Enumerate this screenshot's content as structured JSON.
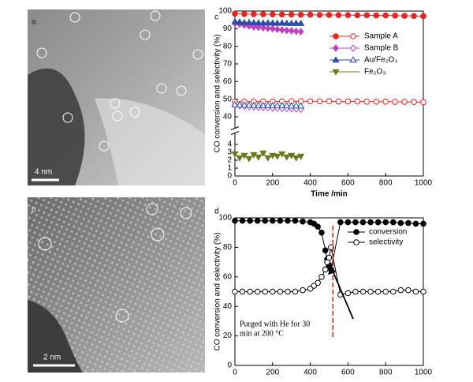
{
  "panels": [
    {
      "label": "a",
      "scale_bar": "4 nm"
    },
    {
      "label": "b",
      "scale_bar": "2 nm"
    }
  ],
  "chart_data": [
    {
      "type": "line",
      "panel_label": "c",
      "xlabel": "Time /min",
      "ylabel": "CO conversion and selectivity (%)",
      "xlim": [
        0,
        1000
      ],
      "xticks": [
        0,
        200,
        400,
        600,
        800,
        1000
      ],
      "ylim": [
        0,
        100
      ],
      "y_break": [
        4,
        40
      ],
      "yticks": [
        0,
        1,
        2,
        3,
        4,
        40,
        50,
        60,
        70,
        80,
        90,
        100
      ],
      "legend": "upper right",
      "series": [
        {
          "name": "Sample A",
          "color": "#e8251f",
          "marker": "circle",
          "x": [
            0,
            50,
            100,
            150,
            200,
            250,
            300,
            350,
            400,
            450,
            500,
            550,
            600,
            650,
            700,
            750,
            800,
            850,
            900,
            950,
            1000
          ],
          "conversion": [
            98.5,
            98.3,
            98.2,
            98.2,
            98.1,
            98,
            98,
            97.9,
            97.9,
            97.8,
            97.8,
            97.7,
            97.7,
            97.6,
            97.6,
            97.5,
            97.5,
            97.4,
            97.3,
            97.2,
            97.1
          ],
          "selectivity": [
            48.5,
            48.6,
            48.6,
            48.7,
            48.7,
            48.8,
            48.8,
            48.8,
            48.8,
            48.8,
            48.8,
            48.7,
            48.7,
            48.7,
            48.6,
            48.6,
            48.6,
            48.5,
            48.5,
            48.4,
            48.3
          ]
        },
        {
          "name": "Sample B",
          "color": "#c040c0",
          "marker": "diamond",
          "x": [
            0,
            25,
            50,
            75,
            100,
            125,
            150,
            175,
            200,
            225,
            250,
            275,
            300,
            325,
            350
          ],
          "conversion": [
            93,
            92.5,
            92,
            91.5,
            91,
            90.8,
            90.5,
            90.2,
            90,
            89.6,
            89.3,
            89,
            88.8,
            88.5,
            88.3
          ],
          "selectivity": [
            46.5,
            46.3,
            46,
            45.8,
            45.6,
            45.4,
            45.3,
            45.2,
            45,
            44.9,
            44.8,
            44.7,
            44.6,
            44.5,
            44.4
          ]
        },
        {
          "name": "Au/Fe₂O₃",
          "color": "#2a4fa8",
          "marker": "triangle-up",
          "x": [
            0,
            25,
            50,
            75,
            100,
            125,
            150,
            175,
            200,
            225,
            250,
            275,
            300,
            325,
            350
          ],
          "conversion": [
            94,
            93.8,
            93.5,
            93.5,
            93.4,
            93.3,
            93.2,
            93.3,
            93.2,
            93.1,
            93.2,
            93.1,
            93,
            93.1,
            93
          ],
          "selectivity": [
            47,
            46.8,
            46.7,
            46.6,
            46.5,
            46.5,
            46.4,
            46.5,
            46.4,
            46.3,
            46.4,
            46.3,
            46.2,
            46.3,
            46.2
          ]
        },
        {
          "name": "Fe₂O₃",
          "color": "#6b7a1e",
          "marker": "triangle-down",
          "x": [
            0,
            25,
            50,
            75,
            100,
            125,
            150,
            175,
            200,
            225,
            250,
            275,
            300,
            325,
            350
          ],
          "conversion": [
            2.8,
            2.3,
            2.6,
            2.2,
            2.7,
            2.4,
            2.9,
            2.3,
            2.6,
            2.5,
            2.8,
            2.4,
            2.6,
            2.3,
            2.5
          ]
        }
      ]
    },
    {
      "type": "line",
      "panel_label": "d",
      "ylabel": "CO conversion and selectivity (%)",
      "xlim": [
        0,
        1000
      ],
      "xticks": [
        0,
        200,
        400,
        600,
        800,
        1000
      ],
      "ylim": [
        0,
        100
      ],
      "yticks": [
        0,
        20,
        40,
        60,
        80,
        100
      ],
      "legend": "upper right",
      "x": [
        0,
        40,
        80,
        120,
        160,
        200,
        240,
        280,
        320,
        360,
        400,
        420,
        440,
        460,
        480,
        490,
        500,
        510,
        560,
        600,
        640,
        680,
        720,
        760,
        800,
        840,
        880,
        920,
        960,
        1000
      ],
      "series": [
        {
          "name": "conversion",
          "color": "#000000",
          "marker": "filled",
          "values": [
            98,
            98,
            98,
            98,
            98,
            98,
            98,
            98,
            98,
            97.5,
            97,
            96,
            94,
            90,
            78,
            72,
            68,
            65,
            97,
            97,
            97,
            97,
            97,
            97,
            97,
            97,
            96.5,
            96.5,
            96,
            96
          ]
        },
        {
          "name": "selectivity",
          "color": "#000000",
          "marker": "open",
          "values": [
            50,
            50,
            50,
            50,
            50,
            50,
            50,
            50,
            50,
            51,
            52,
            54,
            56,
            60,
            65,
            70,
            73,
            80,
            48,
            49,
            50,
            50,
            50,
            50,
            50,
            50,
            51,
            51,
            50,
            50
          ]
        }
      ],
      "annotation": [
        "Purged with He for 30",
        "min at 200 °C"
      ],
      "vline_x": 520,
      "vline_color": "#d62020"
    }
  ]
}
